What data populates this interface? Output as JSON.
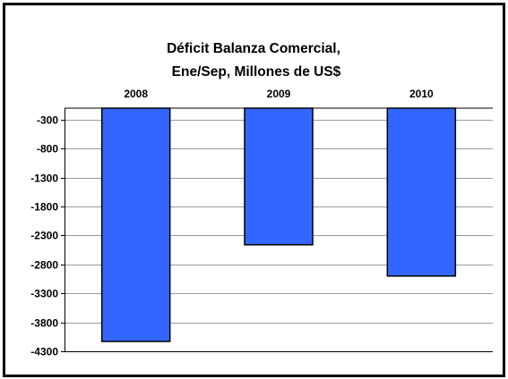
{
  "chart_data": {
    "type": "bar",
    "title_lines": [
      "Déficit Balanza Comercial,",
      "Ene/Sep, Millones de US$"
    ],
    "categories": [
      "2008",
      "2009",
      "2010"
    ],
    "values": [
      -4130,
      -2460,
      -3000
    ],
    "yticks": [
      -300,
      -800,
      -1300,
      -1800,
      -2300,
      -2800,
      -3300,
      -3800,
      -4300
    ],
    "ylim": [
      -4300,
      -100
    ],
    "bar_color": "#3366ff",
    "grid": true,
    "legend": "none"
  }
}
